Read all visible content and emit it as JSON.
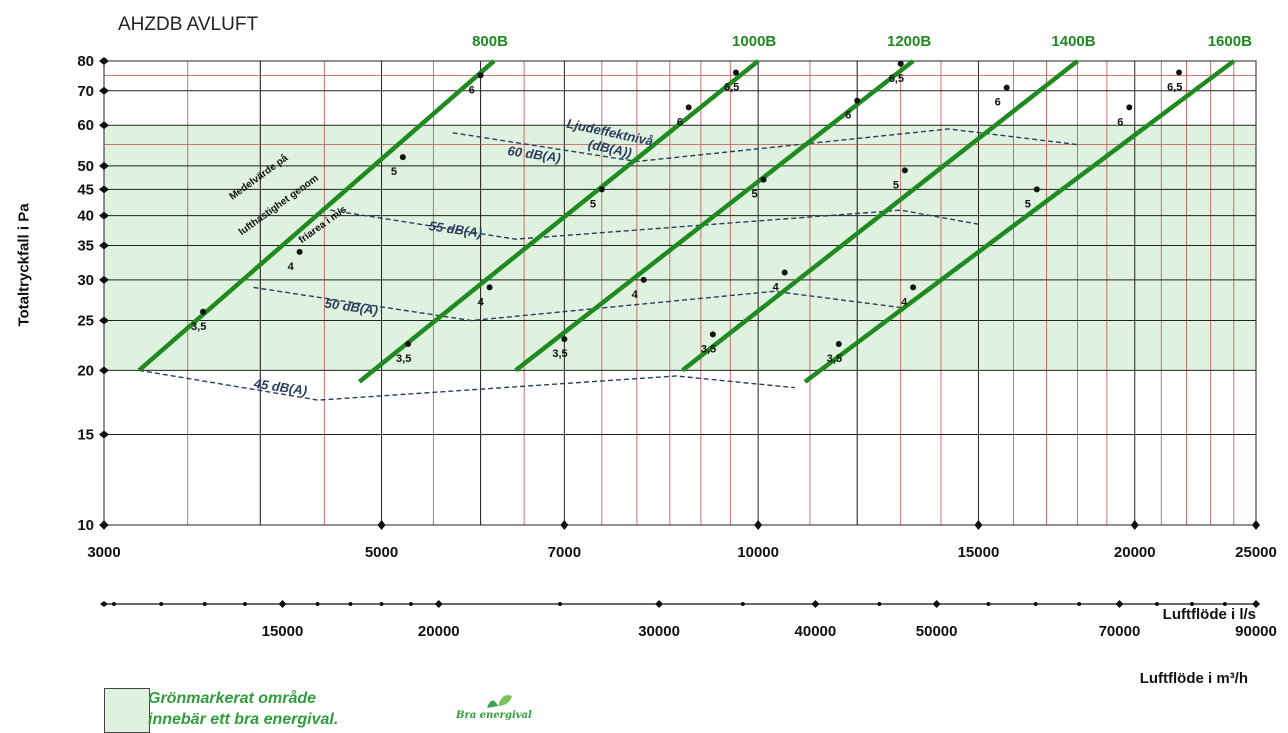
{
  "chart_data": {
    "type": "line",
    "title": "AHZDB AVLUFT",
    "xlabel": "Luftflöde i l/s",
    "xlabel_secondary": "Luftflöde i m³/h",
    "ylabel": "Totaltryckfall i Pa",
    "x_scale": "log",
    "y_scale": "log",
    "xlim": [
      3000,
      25000
    ],
    "ylim": [
      10,
      80
    ],
    "x_ticks": [
      3000,
      5000,
      7000,
      10000,
      15000,
      20000,
      25000
    ],
    "x_tick_labels": [
      "3000",
      "5000",
      "7000",
      "10000",
      "15000",
      "20000",
      "25000"
    ],
    "x_secondary_ticks": [
      15000,
      20000,
      30000,
      40000,
      50000,
      70000,
      90000
    ],
    "x_secondary_tick_labels": [
      "15000",
      "20000",
      "30000",
      "40000",
      "50000",
      "70000",
      "90000"
    ],
    "y_ticks": [
      10,
      15,
      20,
      25,
      30,
      35,
      40,
      45,
      50,
      60,
      70,
      80
    ],
    "y_tick_labels": [
      "10",
      "15",
      "20",
      "25",
      "30",
      "35",
      "40",
      "45",
      "50",
      "60",
      "70",
      "80"
    ],
    "grid": true,
    "green_zone": {
      "y_range": [
        20,
        60
      ],
      "color": "#dff2df"
    },
    "series": [
      {
        "name": "800B",
        "color": "#1f8a1f",
        "line": [
          [
            3200,
            20
          ],
          [
            6150,
            80
          ]
        ],
        "velocity_points": [
          {
            "x": 3600,
            "y": 26,
            "label": "3,5"
          },
          {
            "x": 4300,
            "y": 34,
            "label": "4"
          },
          {
            "x": 5200,
            "y": 52,
            "label": "5"
          },
          {
            "x": 6000,
            "y": 75,
            "label": "6"
          }
        ]
      },
      {
        "name": "1000B",
        "color": "#1f8a1f",
        "line": [
          [
            4800,
            19
          ],
          [
            10000,
            80
          ]
        ],
        "velocity_points": [
          {
            "x": 5250,
            "y": 22.5,
            "label": "3,5"
          },
          {
            "x": 6100,
            "y": 29,
            "label": "4"
          },
          {
            "x": 7500,
            "y": 45,
            "label": "5"
          },
          {
            "x": 8800,
            "y": 65,
            "label": "6"
          },
          {
            "x": 9600,
            "y": 76,
            "label": "6,5"
          }
        ]
      },
      {
        "name": "1200B",
        "color": "#1f8a1f",
        "line": [
          [
            6400,
            20
          ],
          [
            13300,
            80
          ]
        ],
        "velocity_points": [
          {
            "x": 7000,
            "y": 23,
            "label": "3,5"
          },
          {
            "x": 8100,
            "y": 30,
            "label": "4"
          },
          {
            "x": 10100,
            "y": 47,
            "label": "5"
          },
          {
            "x": 12000,
            "y": 67,
            "label": "6"
          },
          {
            "x": 13000,
            "y": 79,
            "label": "6,5"
          }
        ]
      },
      {
        "name": "1400B",
        "color": "#1f8a1f",
        "line": [
          [
            8700,
            20
          ],
          [
            18000,
            80
          ]
        ],
        "velocity_points": [
          {
            "x": 9200,
            "y": 23.5,
            "label": "3,5"
          },
          {
            "x": 10500,
            "y": 31,
            "label": "4"
          },
          {
            "x": 13100,
            "y": 49,
            "label": "5"
          },
          {
            "x": 15800,
            "y": 71,
            "label": "6"
          }
        ]
      },
      {
        "name": "1600B",
        "color": "#1f8a1f",
        "line": [
          [
            10900,
            19
          ],
          [
            24000,
            80
          ]
        ],
        "velocity_points": [
          {
            "x": 11600,
            "y": 22.5,
            "label": "3,5"
          },
          {
            "x": 13300,
            "y": 29,
            "label": "4"
          },
          {
            "x": 16700,
            "y": 45,
            "label": "5"
          },
          {
            "x": 19800,
            "y": 65,
            "label": "6"
          },
          {
            "x": 21700,
            "y": 76,
            "label": "6,5"
          }
        ]
      }
    ],
    "sound_lines": [
      {
        "label": "45 dB(A)",
        "points": [
          [
            3200,
            20
          ],
          [
            4450,
            17.5
          ],
          [
            8600,
            19.5
          ],
          [
            10700,
            18.5
          ]
        ],
        "label_at": [
          3950,
          18.5
        ]
      },
      {
        "label": "50 dB(A)",
        "points": [
          [
            3950,
            29
          ],
          [
            5900,
            25
          ],
          [
            10300,
            28.5
          ],
          [
            13000,
            26.5
          ]
        ],
        "label_at": [
          4500,
          26.5
        ]
      },
      {
        "label": "55 dB(A)",
        "points": [
          [
            4550,
            41
          ],
          [
            6400,
            36
          ],
          [
            13000,
            41
          ],
          [
            15000,
            38.5
          ]
        ],
        "label_at": [
          5450,
          37.5
        ]
      },
      {
        "label": "60 dB(A)",
        "points": [
          [
            5700,
            58
          ],
          [
            8000,
            51
          ],
          [
            14200,
            59
          ],
          [
            18000,
            55
          ]
        ],
        "label_at": [
          6300,
          52.5
        ]
      }
    ],
    "annotations": [
      {
        "text": "Ljudeffektnivå",
        "x": 7600,
        "y": 57
      },
      {
        "text": "(dB(A))",
        "x": 7600,
        "y": 53
      },
      {
        "text": "Medelvärde på",
        "x": 4000,
        "y": 47
      },
      {
        "text": "lufthastighet genom",
        "x": 4150,
        "y": 41.5
      },
      {
        "text": "friarea i  m/s",
        "x": 4500,
        "y": 38
      }
    ]
  },
  "legend": {
    "line1": "Grönmarkerat område",
    "line2": "innebär ett bra energival.",
    "logo_text": "Bra energival"
  }
}
